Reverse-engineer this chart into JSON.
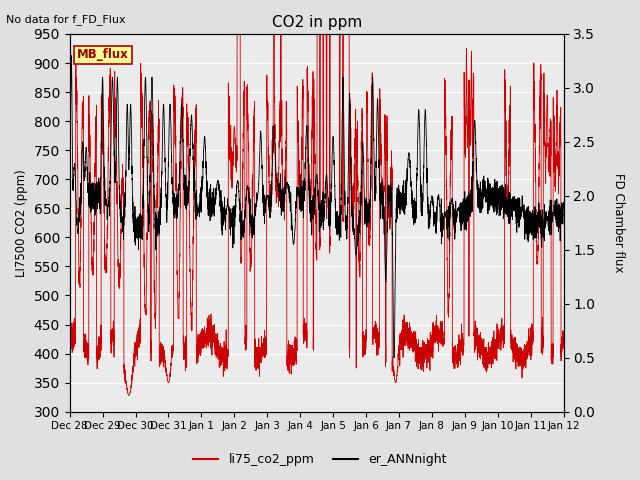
{
  "title": "CO2 in ppm",
  "ylabel_left": "LI7500 CO2 (ppm)",
  "ylabel_right": "FD Chamber flux",
  "top_left_text": "No data for f_FD_Flux",
  "legend_label1": "li75_co2_ppm",
  "legend_label2": "er_ANNnight",
  "legend_box_label": "MB_flux",
  "ylim_left": [
    300,
    950
  ],
  "ylim_right": [
    0.0,
    3.5
  ],
  "yticks_left": [
    300,
    350,
    400,
    450,
    500,
    550,
    600,
    650,
    700,
    750,
    800,
    850,
    900,
    950
  ],
  "yticks_right": [
    0.0,
    0.5,
    1.0,
    1.5,
    2.0,
    2.5,
    3.0,
    3.5
  ],
  "background_color": "#e0e0e0",
  "plot_bg_color": "#ebebeb",
  "line1_color": "#cc0000",
  "line2_color": "#000000",
  "legend_box_facecolor": "#ffff99",
  "legend_box_edgecolor": "#aa0000",
  "grid_color": "#ffffff",
  "tick_labels": [
    "Dec 28",
    "Dec 29",
    "Dec 30",
    "Dec 31",
    "Jan 1",
    "Jan 2",
    "Jan 3",
    "Jan 4",
    "Jan 5",
    "Jan 6",
    "Jan 7",
    "Jan 8",
    "Jan 9",
    "Jan 10",
    "Jan 11",
    "Jan 12"
  ],
  "num_points": 5000
}
